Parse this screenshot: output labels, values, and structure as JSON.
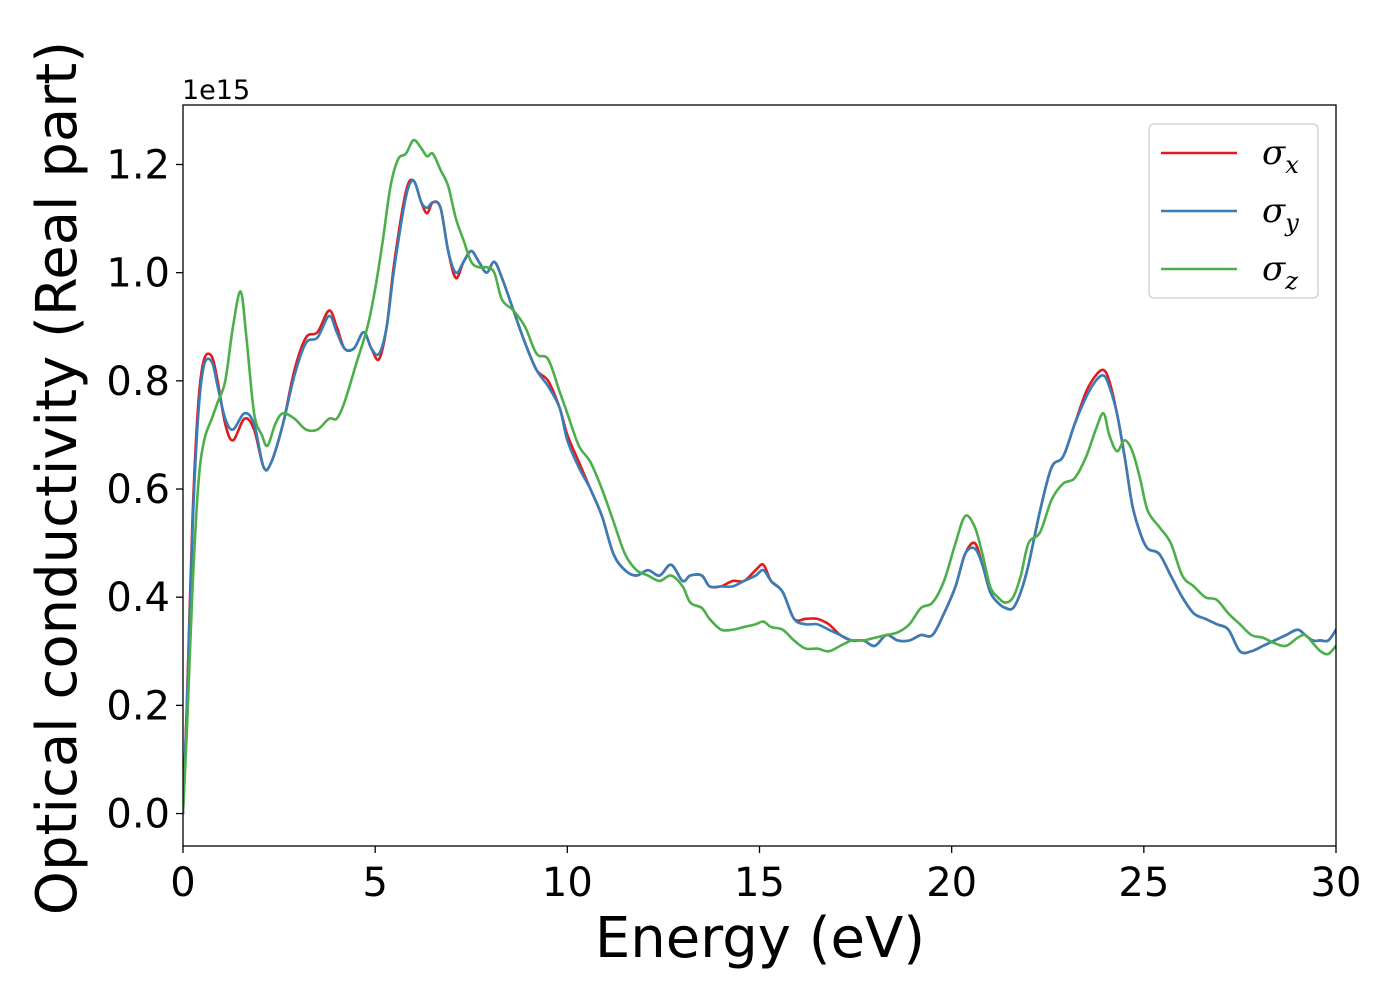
{
  "chart_data": {
    "type": "line",
    "title": "",
    "xlabel": "Energy (eV)",
    "ylabel": "Optical conductivity (Real part)",
    "offset_text": "1e15",
    "xlim": [
      0,
      30
    ],
    "ylim": [
      -0.06,
      1.31
    ],
    "xticks": [
      0,
      5,
      10,
      15,
      20,
      25,
      30
    ],
    "xtick_labels": [
      "0",
      "5",
      "10",
      "15",
      "20",
      "25",
      "30"
    ],
    "yticks": [
      0.0,
      0.2,
      0.4,
      0.6,
      0.8,
      1.0,
      1.2
    ],
    "ytick_labels": [
      "0.0",
      "0.2",
      "0.4",
      "0.6",
      "0.8",
      "1.0",
      "1.2"
    ],
    "grid": false,
    "legend_position": "top-right",
    "series": [
      {
        "name": "σ_x",
        "name_base": "σ",
        "name_sub": "x",
        "color": "#e41a1c",
        "x": [
          0,
          0.1,
          0.25,
          0.4,
          0.55,
          0.75,
          0.9,
          1.1,
          1.3,
          1.6,
          1.85,
          2.1,
          2.3,
          2.6,
          2.9,
          3.2,
          3.5,
          3.8,
          4.0,
          4.2,
          4.45,
          4.7,
          4.9,
          5.1,
          5.3,
          5.5,
          5.8,
          6.0,
          6.2,
          6.35,
          6.5,
          6.7,
          6.9,
          7.1,
          7.3,
          7.5,
          7.7,
          7.9,
          8.1,
          8.3,
          8.6,
          8.9,
          9.2,
          9.5,
          9.8,
          10.0,
          10.3,
          10.6,
          10.9,
          11.2,
          11.5,
          11.8,
          12.1,
          12.4,
          12.7,
          13.0,
          13.2,
          13.5,
          13.7,
          14.0,
          14.3,
          14.6,
          14.9,
          15.1,
          15.3,
          15.6,
          15.9,
          16.2,
          16.5,
          16.8,
          17.1,
          17.4,
          17.7,
          18.0,
          18.3,
          18.6,
          18.9,
          19.2,
          19.5,
          19.8,
          20.1,
          20.35,
          20.6,
          20.8,
          21.0,
          21.2,
          21.4,
          21.6,
          21.8,
          22.0,
          22.3,
          22.6,
          22.9,
          23.2,
          23.5,
          23.75,
          23.95,
          24.1,
          24.3,
          24.5,
          24.7,
          24.9,
          25.1,
          25.4,
          25.7,
          26.0,
          26.3,
          26.6,
          26.9,
          27.2,
          27.5,
          27.8,
          28.1,
          28.4,
          28.7,
          29.0,
          29.2,
          29.4,
          29.6,
          29.8,
          30.0
        ],
        "y": [
          0.0,
          0.2,
          0.55,
          0.76,
          0.84,
          0.845,
          0.8,
          0.72,
          0.69,
          0.73,
          0.71,
          0.64,
          0.65,
          0.72,
          0.82,
          0.88,
          0.89,
          0.93,
          0.9,
          0.86,
          0.86,
          0.89,
          0.86,
          0.84,
          0.9,
          1.02,
          1.15,
          1.17,
          1.13,
          1.11,
          1.13,
          1.12,
          1.04,
          0.99,
          1.02,
          1.04,
          1.02,
          1.0,
          1.02,
          0.99,
          0.93,
          0.87,
          0.82,
          0.8,
          0.75,
          0.7,
          0.65,
          0.6,
          0.55,
          0.48,
          0.45,
          0.44,
          0.45,
          0.44,
          0.46,
          0.43,
          0.44,
          0.44,
          0.42,
          0.42,
          0.43,
          0.43,
          0.45,
          0.46,
          0.43,
          0.41,
          0.36,
          0.36,
          0.36,
          0.35,
          0.33,
          0.32,
          0.32,
          0.31,
          0.33,
          0.32,
          0.32,
          0.33,
          0.33,
          0.37,
          0.42,
          0.48,
          0.5,
          0.46,
          0.41,
          0.39,
          0.38,
          0.38,
          0.41,
          0.46,
          0.56,
          0.64,
          0.66,
          0.72,
          0.78,
          0.81,
          0.82,
          0.8,
          0.74,
          0.66,
          0.57,
          0.52,
          0.49,
          0.48,
          0.44,
          0.4,
          0.37,
          0.36,
          0.35,
          0.34,
          0.3,
          0.3,
          0.31,
          0.32,
          0.33,
          0.34,
          0.33,
          0.32,
          0.32,
          0.32,
          0.34
        ]
      },
      {
        "name": "σ_y",
        "name_base": "σ",
        "name_sub": "y",
        "color": "#377eb8",
        "x": [
          0,
          0.1,
          0.25,
          0.4,
          0.55,
          0.75,
          0.9,
          1.1,
          1.3,
          1.6,
          1.85,
          2.1,
          2.3,
          2.6,
          2.9,
          3.2,
          3.5,
          3.8,
          4.0,
          4.2,
          4.45,
          4.7,
          4.9,
          5.1,
          5.3,
          5.5,
          5.8,
          6.0,
          6.2,
          6.35,
          6.5,
          6.7,
          6.9,
          7.1,
          7.3,
          7.5,
          7.7,
          7.9,
          8.1,
          8.3,
          8.6,
          8.9,
          9.2,
          9.5,
          9.8,
          10.0,
          10.3,
          10.6,
          10.9,
          11.2,
          11.5,
          11.8,
          12.1,
          12.4,
          12.7,
          13.0,
          13.2,
          13.5,
          13.7,
          14.0,
          14.3,
          14.6,
          14.9,
          15.1,
          15.3,
          15.6,
          15.9,
          16.2,
          16.5,
          16.8,
          17.1,
          17.4,
          17.7,
          18.0,
          18.3,
          18.6,
          18.9,
          19.2,
          19.5,
          19.8,
          20.1,
          20.35,
          20.6,
          20.8,
          21.0,
          21.2,
          21.4,
          21.6,
          21.8,
          22.0,
          22.3,
          22.6,
          22.9,
          23.2,
          23.5,
          23.75,
          23.95,
          24.1,
          24.3,
          24.5,
          24.7,
          24.9,
          25.1,
          25.4,
          25.7,
          26.0,
          26.3,
          26.6,
          26.9,
          27.2,
          27.5,
          27.8,
          28.1,
          28.4,
          28.7,
          29.0,
          29.2,
          29.4,
          29.6,
          29.8,
          30.0
        ],
        "y": [
          0.0,
          0.19,
          0.53,
          0.74,
          0.83,
          0.835,
          0.79,
          0.73,
          0.71,
          0.74,
          0.72,
          0.64,
          0.65,
          0.72,
          0.81,
          0.87,
          0.88,
          0.92,
          0.89,
          0.86,
          0.86,
          0.89,
          0.86,
          0.85,
          0.9,
          1.01,
          1.14,
          1.17,
          1.13,
          1.12,
          1.13,
          1.12,
          1.04,
          1.0,
          1.02,
          1.04,
          1.02,
          1.0,
          1.02,
          0.99,
          0.93,
          0.87,
          0.82,
          0.79,
          0.75,
          0.69,
          0.64,
          0.6,
          0.55,
          0.48,
          0.45,
          0.44,
          0.45,
          0.44,
          0.46,
          0.43,
          0.44,
          0.44,
          0.42,
          0.42,
          0.42,
          0.43,
          0.44,
          0.45,
          0.43,
          0.41,
          0.36,
          0.35,
          0.35,
          0.34,
          0.33,
          0.32,
          0.32,
          0.31,
          0.33,
          0.32,
          0.32,
          0.33,
          0.33,
          0.37,
          0.42,
          0.48,
          0.49,
          0.46,
          0.41,
          0.39,
          0.38,
          0.38,
          0.41,
          0.46,
          0.56,
          0.64,
          0.66,
          0.72,
          0.77,
          0.8,
          0.81,
          0.79,
          0.74,
          0.66,
          0.57,
          0.52,
          0.49,
          0.48,
          0.44,
          0.4,
          0.37,
          0.36,
          0.35,
          0.34,
          0.3,
          0.3,
          0.31,
          0.32,
          0.33,
          0.34,
          0.33,
          0.32,
          0.32,
          0.32,
          0.34
        ]
      },
      {
        "name": "σ_z",
        "name_base": "σ",
        "name_sub": "z",
        "color": "#4daf4a",
        "x": [
          0,
          0.1,
          0.25,
          0.4,
          0.55,
          0.75,
          0.9,
          1.1,
          1.3,
          1.5,
          1.65,
          1.85,
          2.05,
          2.2,
          2.4,
          2.6,
          2.9,
          3.2,
          3.5,
          3.8,
          4.0,
          4.2,
          4.5,
          4.8,
          5.0,
          5.2,
          5.4,
          5.6,
          5.8,
          6.0,
          6.2,
          6.35,
          6.5,
          6.7,
          6.9,
          7.1,
          7.3,
          7.5,
          7.7,
          7.9,
          8.1,
          8.3,
          8.6,
          8.9,
          9.2,
          9.5,
          9.8,
          10.0,
          10.3,
          10.6,
          10.9,
          11.2,
          11.5,
          11.8,
          12.1,
          12.4,
          12.7,
          13.0,
          13.2,
          13.5,
          13.7,
          14.0,
          14.3,
          14.6,
          14.9,
          15.1,
          15.3,
          15.6,
          15.9,
          16.2,
          16.5,
          16.8,
          17.1,
          17.4,
          17.7,
          18.0,
          18.3,
          18.6,
          18.9,
          19.2,
          19.5,
          19.8,
          20.1,
          20.35,
          20.6,
          20.8,
          21.0,
          21.2,
          21.4,
          21.6,
          21.8,
          22.0,
          22.3,
          22.6,
          22.9,
          23.2,
          23.5,
          23.75,
          23.95,
          24.1,
          24.3,
          24.5,
          24.7,
          24.9,
          25.1,
          25.4,
          25.7,
          26.0,
          26.3,
          26.6,
          26.9,
          27.2,
          27.5,
          27.8,
          28.1,
          28.4,
          28.7,
          29.0,
          29.2,
          29.4,
          29.6,
          29.8,
          30.0
        ],
        "y": [
          0.0,
          0.15,
          0.42,
          0.61,
          0.69,
          0.73,
          0.76,
          0.8,
          0.9,
          0.965,
          0.88,
          0.74,
          0.7,
          0.68,
          0.72,
          0.74,
          0.73,
          0.71,
          0.71,
          0.73,
          0.73,
          0.76,
          0.83,
          0.9,
          0.97,
          1.06,
          1.16,
          1.21,
          1.22,
          1.245,
          1.23,
          1.215,
          1.22,
          1.19,
          1.16,
          1.1,
          1.06,
          1.02,
          1.01,
          1.01,
          1.0,
          0.95,
          0.93,
          0.9,
          0.85,
          0.84,
          0.78,
          0.74,
          0.68,
          0.65,
          0.6,
          0.54,
          0.48,
          0.45,
          0.44,
          0.43,
          0.44,
          0.42,
          0.39,
          0.38,
          0.36,
          0.34,
          0.34,
          0.345,
          0.35,
          0.355,
          0.345,
          0.34,
          0.32,
          0.305,
          0.305,
          0.3,
          0.31,
          0.32,
          0.32,
          0.325,
          0.33,
          0.335,
          0.35,
          0.38,
          0.39,
          0.43,
          0.5,
          0.55,
          0.53,
          0.48,
          0.42,
          0.4,
          0.39,
          0.4,
          0.44,
          0.5,
          0.52,
          0.58,
          0.61,
          0.62,
          0.66,
          0.71,
          0.74,
          0.7,
          0.67,
          0.69,
          0.67,
          0.62,
          0.56,
          0.53,
          0.5,
          0.44,
          0.42,
          0.4,
          0.395,
          0.37,
          0.35,
          0.33,
          0.325,
          0.315,
          0.31,
          0.325,
          0.33,
          0.315,
          0.3,
          0.295,
          0.31
        ]
      }
    ]
  }
}
